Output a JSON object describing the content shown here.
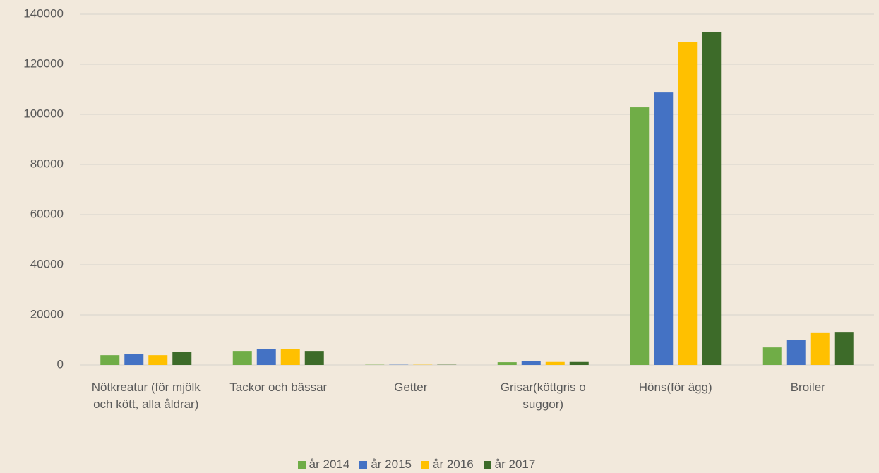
{
  "chart_data": {
    "type": "bar",
    "categories": [
      "Nötkreatur (för mjölk och kött, alla åldrar)",
      "Tackor och bässar",
      "Getter",
      "Grisar(köttgris o suggor)",
      "Höns(för ägg)",
      "Broiler"
    ],
    "series": [
      {
        "name": "år 2014",
        "color": "#70ad47",
        "values": [
          3900,
          5600,
          100,
          1100,
          102800,
          7000
        ]
      },
      {
        "name": "år 2015",
        "color": "#4472c4",
        "values": [
          4400,
          6400,
          100,
          1600,
          108700,
          9900
        ]
      },
      {
        "name": "år 2016",
        "color": "#ffc000",
        "values": [
          3900,
          6400,
          100,
          1200,
          129000,
          13000
        ]
      },
      {
        "name": "år 2017",
        "color": "#3d6b29",
        "values": [
          5300,
          5600,
          100,
          1200,
          132700,
          13200
        ]
      }
    ],
    "ylim": [
      0,
      140000
    ],
    "yticks": [
      0,
      20000,
      40000,
      60000,
      80000,
      100000,
      120000,
      140000
    ],
    "grid": true,
    "legend": "bottom"
  }
}
